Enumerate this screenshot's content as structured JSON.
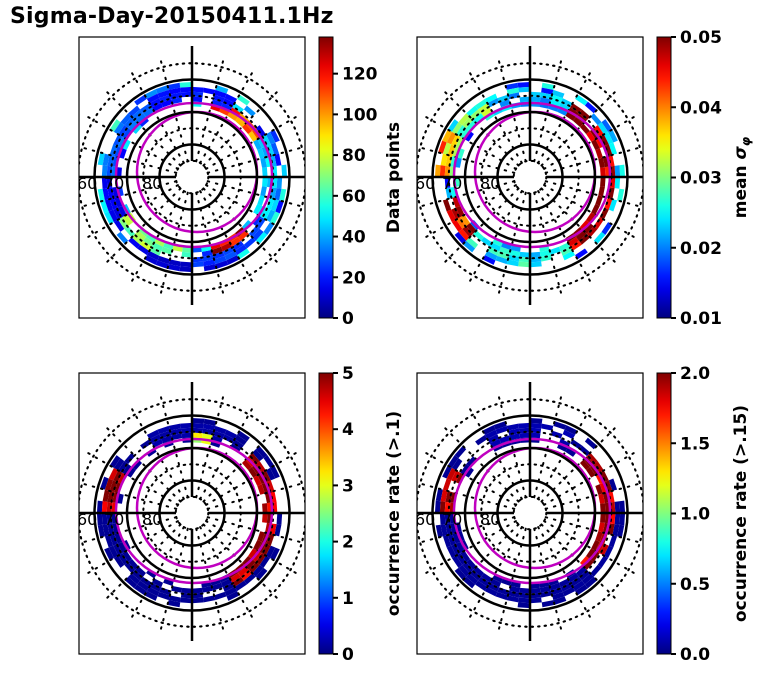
{
  "figure": {
    "title": "Sigma-Day-20150411.1Hz"
  },
  "chart_data": [
    {
      "type": "heatmap",
      "projection": "polar",
      "title": "",
      "colormap": "jet",
      "colorbar_label": "Data points",
      "clim": [
        0,
        138
      ],
      "colorbar_ticks": [
        0,
        20,
        40,
        60,
        80,
        100,
        120
      ],
      "colorbar_tick_labels": [
        "0",
        "20",
        "40",
        "60",
        "80",
        "100",
        "120"
      ],
      "lat_labels": [
        "60",
        "70",
        "80"
      ],
      "lat_rings_solid": [
        60,
        70,
        80
      ],
      "lat_rings_dotted": [
        55,
        65,
        75,
        85
      ],
      "oval_boundaries": "two magenta contours (approx. 65-72 MLAT)",
      "approx_bins": [
        {
          "mlat": 62,
          "mlt_start": 22,
          "mlt_end": 2,
          "value": 10
        },
        {
          "mlat": 64,
          "mlt_start": 18,
          "mlt_end": 22,
          "value": 15
        },
        {
          "mlat": 65,
          "mlt_start": 0,
          "mlt_end": 4,
          "value": 25
        },
        {
          "mlat": 66,
          "mlt_start": 4,
          "mlt_end": 8,
          "value": 45
        },
        {
          "mlat": 66,
          "mlt_start": 20,
          "mlt_end": 24,
          "value": 70
        },
        {
          "mlat": 67,
          "mlt_start": 8,
          "mlt_end": 11,
          "value": 110
        },
        {
          "mlat": 67,
          "mlt_start": 1,
          "mlt_end": 3,
          "value": 125
        },
        {
          "mlat": 64,
          "mlt_start": 10,
          "mlt_end": 14,
          "value": 20
        },
        {
          "mlat": 65,
          "mlt_start": 14,
          "mlt_end": 18,
          "value": 30
        }
      ]
    },
    {
      "type": "heatmap",
      "projection": "polar",
      "title": "",
      "colormap": "jet",
      "colorbar_label": "mean σφ",
      "clim": [
        0.01,
        0.05
      ],
      "colorbar_ticks": [
        0.01,
        0.02,
        0.03,
        0.04,
        0.05
      ],
      "colorbar_tick_labels": [
        "0.01",
        "0.02",
        "0.03",
        "0.04",
        "0.05"
      ],
      "lat_labels": [
        "60",
        "70",
        "80"
      ],
      "lat_rings_solid": [
        60,
        70,
        80
      ],
      "lat_rings_dotted": [
        55,
        65,
        75,
        85
      ],
      "oval_boundaries": "two magenta contours (approx. 65-72 MLAT)",
      "approx_bins": [
        {
          "mlat": 65,
          "mlt_start": 22,
          "mlt_end": 2,
          "value": 0.025
        },
        {
          "mlat": 64,
          "mlt_start": 19,
          "mlt_end": 21,
          "value": 0.045
        },
        {
          "mlat": 66,
          "mlt_start": 2,
          "mlt_end": 10,
          "value": 0.05
        },
        {
          "mlat": 64,
          "mlt_start": 14,
          "mlt_end": 18,
          "value": 0.03
        },
        {
          "mlat": 66,
          "mlt_start": 10,
          "mlt_end": 14,
          "value": 0.022
        },
        {
          "mlat": 63,
          "mlt_start": 16,
          "mlt_end": 18,
          "value": 0.038
        }
      ]
    },
    {
      "type": "heatmap",
      "projection": "polar",
      "title": "",
      "colormap": "jet",
      "colorbar_label": "occurrence rate (>.1)",
      "clim": [
        0,
        5
      ],
      "colorbar_ticks": [
        0,
        1,
        2,
        3,
        4,
        5
      ],
      "colorbar_tick_labels": [
        "0",
        "1",
        "2",
        "3",
        "4",
        "5"
      ],
      "lat_labels": [
        "60",
        "70",
        "80"
      ],
      "lat_rings_solid": [
        60,
        70,
        80
      ],
      "lat_rings_dotted": [
        55,
        65,
        75,
        85
      ],
      "oval_boundaries": "two magenta contours (approx. 65-72 MLAT)",
      "approx_bins": [
        {
          "mlat": 64,
          "mlt_start": 18,
          "mlt_end": 6,
          "value": 0.1
        },
        {
          "mlat": 66,
          "mlt_start": 2,
          "mlt_end": 9,
          "value": 5
        },
        {
          "mlat": 65,
          "mlt_start": 16,
          "mlt_end": 18,
          "value": 5
        },
        {
          "mlat": 64,
          "mlt_start": 10,
          "mlt_end": 14,
          "value": 0.2
        },
        {
          "mlat": 67,
          "mlt_start": 11,
          "mlt_end": 12,
          "value": 3
        }
      ]
    },
    {
      "type": "heatmap",
      "projection": "polar",
      "title": "",
      "colormap": "jet",
      "colorbar_label": "occurrence rate (>.15)",
      "clim": [
        0.0,
        2.0
      ],
      "colorbar_ticks": [
        0.0,
        0.5,
        1.0,
        1.5,
        2.0
      ],
      "colorbar_tick_labels": [
        "0.0",
        "0.5",
        "1.0",
        "1.5",
        "2.0"
      ],
      "lat_labels": [
        "60",
        "70",
        "80"
      ],
      "lat_rings_solid": [
        60,
        70,
        80
      ],
      "lat_rings_dotted": [
        55,
        65,
        75,
        85
      ],
      "oval_boundaries": "two magenta contours (approx. 65-72 MLAT)",
      "approx_bins": [
        {
          "mlat": 64,
          "mlt_start": 18,
          "mlt_end": 6,
          "value": 0.05
        },
        {
          "mlat": 66,
          "mlt_start": 3,
          "mlt_end": 9,
          "value": 2.0
        },
        {
          "mlat": 65,
          "mlt_start": 16,
          "mlt_end": 18,
          "value": 2.0
        },
        {
          "mlat": 64,
          "mlt_start": 10,
          "mlt_end": 14,
          "value": 0.1
        }
      ]
    }
  ]
}
